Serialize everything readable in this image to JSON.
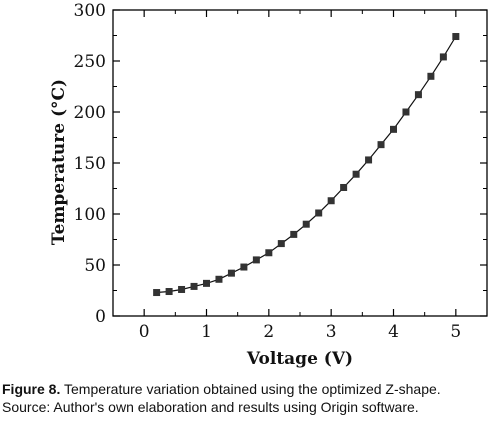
{
  "chart_data": {
    "type": "line",
    "title": "",
    "xlabel": "Voltage (V)",
    "ylabel": "Temperature (°C)",
    "xlim": [
      -0.5,
      5.5
    ],
    "ylim": [
      0,
      300
    ],
    "xticks": [
      0,
      1,
      2,
      3,
      4,
      5
    ],
    "yticks": [
      0,
      50,
      100,
      150,
      200,
      250,
      300
    ],
    "grid": false,
    "marker": "square",
    "series": [
      {
        "x": [
          0.2,
          0.4,
          0.6,
          0.8,
          1.0,
          1.2,
          1.4,
          1.6,
          1.8,
          2.0,
          2.2,
          2.4,
          2.6,
          2.8,
          3.0,
          3.2,
          3.4,
          3.6,
          3.8,
          4.0,
          4.2,
          4.4,
          4.6,
          4.8,
          5.0
        ],
        "y": [
          23,
          24,
          26,
          29,
          32,
          36,
          42,
          48,
          55,
          62,
          71,
          80,
          90,
          101,
          113,
          126,
          139,
          153,
          168,
          183,
          200,
          217,
          235,
          254,
          274
        ]
      }
    ]
  },
  "caption": {
    "label": "Figure 8.",
    "line1": " Temperature variation obtained using the optimized Z-shape.",
    "line2": "Source: Author's own elaboration and results using Origin software."
  },
  "colors": {
    "line": "#111111",
    "marker": "#333333",
    "axis": "#000000"
  }
}
